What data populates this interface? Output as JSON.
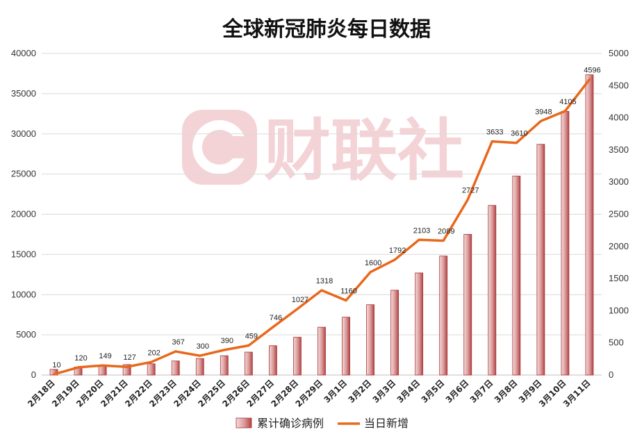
{
  "watermark": {
    "text": "财联社"
  },
  "chart_data": {
    "type": "bar",
    "title": "全球新冠肺炎每日数据",
    "categories": [
      "2月18日",
      "2月19日",
      "2月20日",
      "2月21日",
      "2月22日",
      "2月23日",
      "2月24日",
      "2月25日",
      "2月26日",
      "2月27日",
      "2月28日",
      "2月29日",
      "3月1日",
      "3月2日",
      "3月3日",
      "3月4日",
      "3月5日",
      "3月6日",
      "3月7日",
      "3月8日",
      "3月9日",
      "3月10日",
      "3月11日"
    ],
    "y_left": {
      "min": 0,
      "max": 40000,
      "ticks": [
        0,
        5000,
        10000,
        15000,
        20000,
        25000,
        30000,
        35000,
        40000
      ]
    },
    "y_right": {
      "min": 0,
      "max": 5000,
      "ticks": [
        0,
        500,
        1000,
        1500,
        2000,
        2500,
        3000,
        3500,
        4000,
        4500,
        5000
      ]
    },
    "series": [
      {
        "name": "累计确诊病例",
        "type": "bar",
        "axis": "left",
        "color": "#c0504d",
        "values": [
          700,
          1000,
          1100,
          1300,
          1400,
          1750,
          2050,
          2400,
          2850,
          3650,
          4700,
          5950,
          7200,
          8750,
          10550,
          12700,
          14800,
          17500,
          21100,
          24750,
          28700,
          32800,
          37350
        ]
      },
      {
        "name": "当日新增",
        "type": "line",
        "axis": "right",
        "color": "#e8681b",
        "values": [
          10,
          120,
          149,
          127,
          202,
          367,
          300,
          390,
          459,
          746,
          1027,
          1318,
          1160,
          1600,
          1792,
          2103,
          2089,
          2727,
          3633,
          3610,
          3948,
          4105,
          4596
        ],
        "labels": [
          "10",
          "120",
          "149",
          "127",
          "202",
          "367",
          "300",
          "390",
          "459",
          "746",
          "1027",
          "1318",
          "1160",
          "1600",
          "1792",
          "2103",
          "2089",
          "2727",
          "3633",
          "3610",
          "3948",
          "4105",
          "4596"
        ]
      }
    ],
    "legend": {
      "position": "bottom"
    },
    "grid": true
  }
}
